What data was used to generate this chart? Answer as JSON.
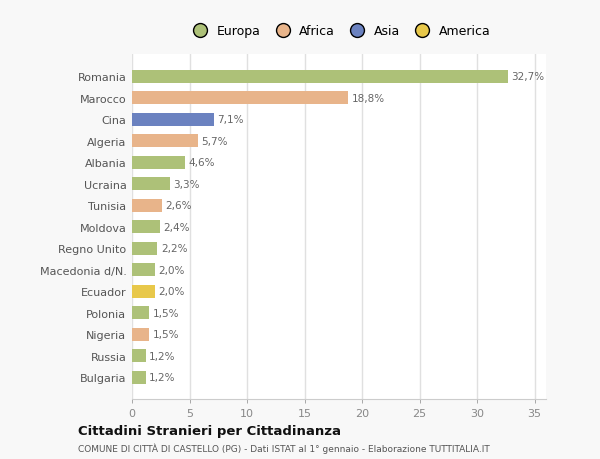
{
  "countries": [
    "Romania",
    "Marocco",
    "Cina",
    "Algeria",
    "Albania",
    "Ucraina",
    "Tunisia",
    "Moldova",
    "Regno Unito",
    "Macedonia d/N.",
    "Ecuador",
    "Polonia",
    "Nigeria",
    "Russia",
    "Bulgaria"
  ],
  "values": [
    32.7,
    18.8,
    7.1,
    5.7,
    4.6,
    3.3,
    2.6,
    2.4,
    2.2,
    2.0,
    2.0,
    1.5,
    1.5,
    1.2,
    1.2
  ],
  "labels": [
    "32,7%",
    "18,8%",
    "7,1%",
    "5,7%",
    "4,6%",
    "3,3%",
    "2,6%",
    "2,4%",
    "2,2%",
    "2,0%",
    "2,0%",
    "1,5%",
    "1,5%",
    "1,2%",
    "1,2%"
  ],
  "bar_colors": [
    "#adc178",
    "#e8b48a",
    "#6b82c0",
    "#e8b48a",
    "#adc178",
    "#adc178",
    "#e8b48a",
    "#adc178",
    "#adc178",
    "#adc178",
    "#e8c84a",
    "#adc178",
    "#e8b48a",
    "#adc178",
    "#adc178"
  ],
  "legend_labels": [
    "Europa",
    "Africa",
    "Asia",
    "America"
  ],
  "legend_colors": [
    "#adc178",
    "#e8b48a",
    "#6b82c0",
    "#e8c84a"
  ],
  "title1": "Cittadini Stranieri per Cittadinanza",
  "title2": "COMUNE DI CITTÀ DI CASTELLO (PG) - Dati ISTAT al 1° gennaio - Elaborazione TUTTITALIA.IT",
  "xlim": [
    0,
    36
  ],
  "xticks": [
    0,
    5,
    10,
    15,
    20,
    25,
    30,
    35
  ],
  "plot_bg_color": "#ffffff",
  "fig_bg_color": "#f8f8f8",
  "grid_color": "#e0e0e0",
  "bar_height": 0.6
}
